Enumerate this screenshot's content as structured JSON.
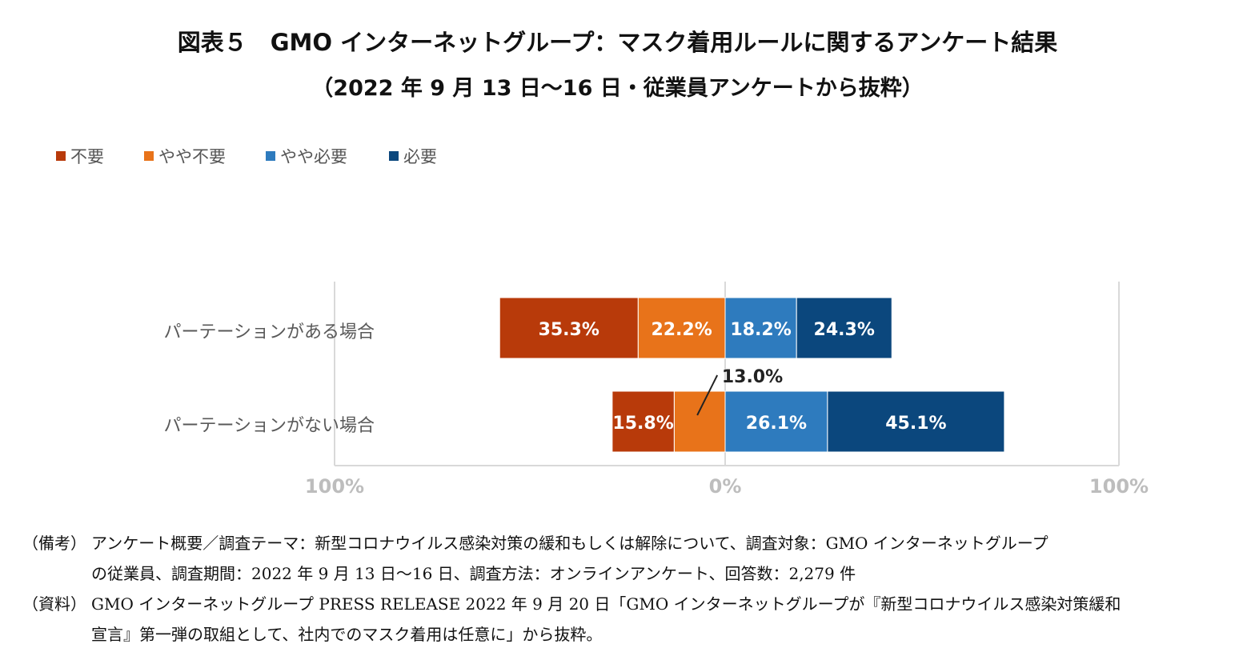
{
  "title": {
    "line1": "図表５　GMO インターネットグループ：マスク着用ルールに関するアンケート結果",
    "line2": "（2022 年 9 月 13 日～16 日・従業員アンケートから抜粋）"
  },
  "legend": [
    {
      "label": "不要",
      "color": "#B83A0A"
    },
    {
      "label": "やや不要",
      "color": "#E8731A"
    },
    {
      "label": "やや必要",
      "color": "#2E7BBE"
    },
    {
      "label": "必要",
      "color": "#0B477D"
    }
  ],
  "chart_data": {
    "type": "bar",
    "orientation": "horizontal-diverging-stacked",
    "categories": [
      "パーテーションがある場合",
      "パーテーションがない場合"
    ],
    "series": [
      {
        "name": "不要",
        "values": [
          35.3,
          15.8
        ],
        "color": "#B83A0A",
        "side": "left"
      },
      {
        "name": "やや不要",
        "values": [
          22.2,
          13.0
        ],
        "color": "#E8731A",
        "side": "left"
      },
      {
        "name": "やや必要",
        "values": [
          18.2,
          26.1
        ],
        "color": "#2E7BBE",
        "side": "right"
      },
      {
        "name": "必要",
        "values": [
          24.3,
          45.1
        ],
        "color": "#0B477D",
        "side": "right"
      }
    ],
    "data_labels": [
      [
        "35.3%",
        "22.2%",
        "18.2%",
        "24.3%"
      ],
      [
        "15.8%",
        "13.0%",
        "26.1%",
        "45.1%"
      ]
    ],
    "xtick_labels": [
      "100%",
      "0%",
      "100%"
    ],
    "xlim": [
      -100,
      100
    ],
    "grid": false,
    "legend_position": "top-left"
  },
  "notes": {
    "biko_label": "（備考）",
    "biko_line1": "アンケート概要／調査テーマ：新型コロナウイルス感染対策の緩和もしくは解除について、調査対象：GMO インターネットグループ",
    "biko_line2": "の従業員、調査期間：2022 年 9 月 13 日～16 日、調査方法：オンラインアンケート、回答数：2,279 件",
    "shiryo_label": "（資料）",
    "shiryo_line1": "GMO インターネットグループ PRESS RELEASE 2022 年 9 月 20 日「GMO インターネットグループが『新型コロナウイルス感染対策緩和",
    "shiryo_line2": "宣言』第一弾の取組として、社内でのマスク着用は任意に」から抜粋。"
  }
}
